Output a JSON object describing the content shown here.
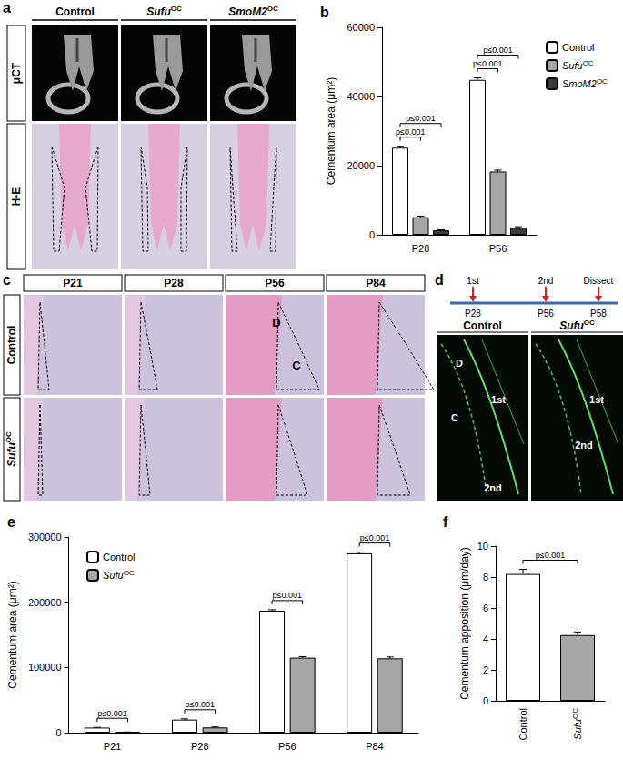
{
  "image_panels": {
    "a": {
      "title": "a",
      "columns": [
        "Control",
        "SufuOC",
        "SmoM2OC"
      ],
      "rows": [
        "μCT",
        "H-E"
      ]
    },
    "c": {
      "title": "c",
      "columns": [
        "P21",
        "P28",
        "P56",
        "P84"
      ],
      "rows": [
        "Control",
        "SufuOC"
      ],
      "marks": [
        "D",
        "C"
      ]
    },
    "d": {
      "title": "d",
      "timeline": {
        "events": [
          "1st",
          "2nd",
          "Dissect"
        ],
        "ages": [
          "P28",
          "P56",
          "P58"
        ]
      },
      "columns": [
        "Control",
        "SufuOC"
      ],
      "marks": [
        [
          "D",
          "C",
          "1st",
          "2nd"
        ],
        [
          "1st",
          "2nd"
        ]
      ]
    }
  },
  "chart_data": [
    {
      "type": "bar",
      "title": "b",
      "y_label": "Cementum area (μm²)",
      "categories": [
        "P28",
        "P56"
      ],
      "series": [
        {
          "name": "Control",
          "color": "#ffffff",
          "values": [
            25200,
            44800
          ],
          "errors": [
            400,
            600
          ]
        },
        {
          "name": "SufuOC",
          "color": "#a6a6a6",
          "values": [
            5100,
            18300
          ],
          "errors": [
            300,
            400
          ]
        },
        {
          "name": "SmoM2OC",
          "color": "#3a3a3a",
          "values": [
            1300,
            2100
          ],
          "errors": [
            150,
            250
          ]
        }
      ],
      "ylim": [
        0,
        60000
      ],
      "yticks": [
        0,
        20000,
        40000,
        60000
      ],
      "grid": false,
      "legend": "upper right",
      "annotations": [
        {
          "category": "P28",
          "from": "Control",
          "to": "SufuOC",
          "label": "p≤0.001"
        },
        {
          "category": "P28",
          "from": "Control",
          "to": "SmoM2OC",
          "label": "p≤0.001"
        },
        {
          "category": "P56",
          "from": "Control",
          "to": "SufuOC",
          "label": "p≤0.001"
        },
        {
          "category": "P56",
          "from": "Control",
          "to": "SmoM2OC",
          "label": "p≤0.001"
        }
      ]
    },
    {
      "type": "bar",
      "title": "e",
      "y_label": "Cementum area (μm²)",
      "categories": [
        "P21",
        "P28",
        "P56",
        "P84"
      ],
      "series": [
        {
          "name": "Control",
          "color": "#ffffff",
          "values": [
            7800,
            20000,
            187000,
            275000
          ],
          "errors": [
            300,
            1200,
            1500,
            1800
          ]
        },
        {
          "name": "SufuOC",
          "color": "#a6a6a6",
          "values": [
            900,
            8000,
            115000,
            114000
          ],
          "errors": [
            100,
            800,
            1500,
            2000
          ]
        }
      ],
      "ylim": [
        0,
        300000
      ],
      "yticks": [
        0,
        100000,
        200000,
        300000
      ],
      "grid": false,
      "legend": "upper left",
      "annotations": [
        {
          "category": "P21",
          "from": "Control",
          "to": "SufuOC",
          "label": "p≤0.001"
        },
        {
          "category": "P28",
          "from": "Control",
          "to": "SufuOC",
          "label": "p≤0.001"
        },
        {
          "category": "P56",
          "from": "Control",
          "to": "SufuOC",
          "label": "p≤0.001"
        },
        {
          "category": "P84",
          "from": "Control",
          "to": "SufuOC",
          "label": "p≤0.001"
        }
      ]
    },
    {
      "type": "bar",
      "title": "f",
      "y_label": "Cementum apposition (μm/day)",
      "categories": [
        "Control",
        "SufuOC"
      ],
      "values": [
        8.2,
        4.25
      ],
      "errors": [
        0.3,
        0.2
      ],
      "colors": [
        "#ffffff",
        "#a6a6a6"
      ],
      "ylim": [
        0,
        10
      ],
      "yticks": [
        0,
        2,
        4,
        6,
        8,
        10
      ],
      "grid": false,
      "annotations": [
        {
          "from": "Control",
          "to": "SufuOC",
          "label": "p≤0.001"
        }
      ]
    }
  ]
}
